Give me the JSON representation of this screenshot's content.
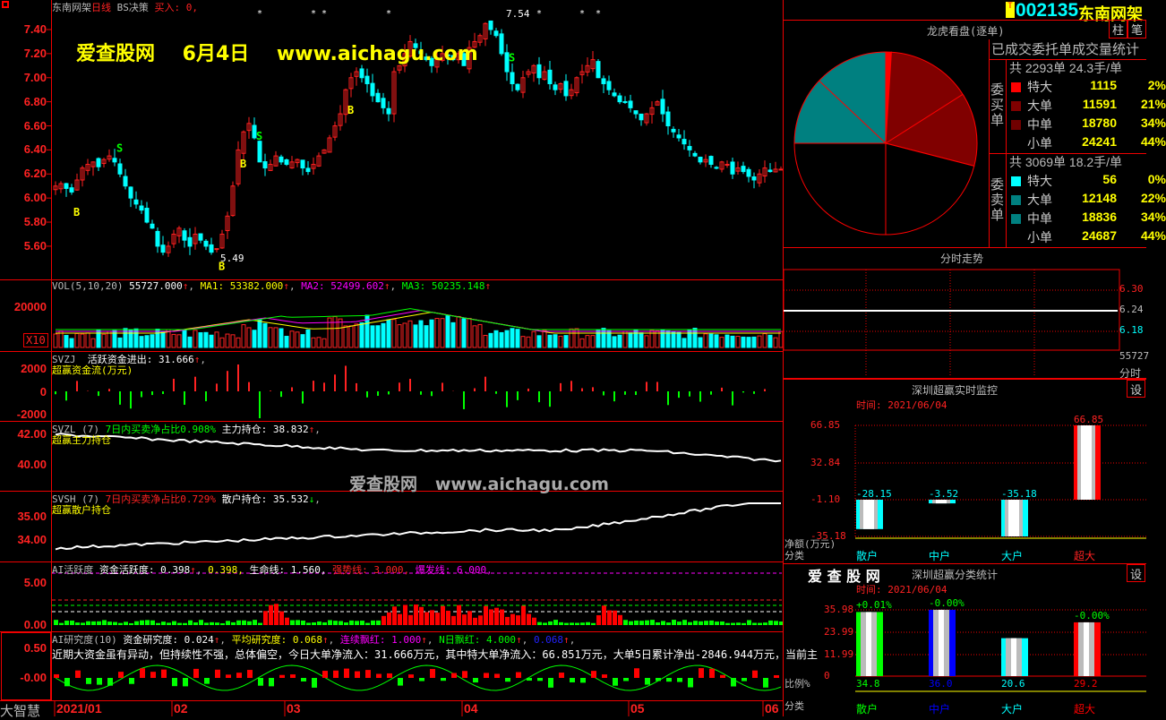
{
  "main_chart": {
    "stock_name": "东南网架",
    "period": "日线",
    "strategy": "BS决策",
    "buy_label": "买入: 0,",
    "high_label": "7.54",
    "low_label": "5.49",
    "watermark_title": "爱查股网",
    "watermark_date": "6月4日",
    "watermark_url": "www.aichagu.com",
    "y_ticks": [
      "7.40",
      "7.20",
      "7.00",
      "6.80",
      "6.60",
      "6.40",
      "6.20",
      "6.00",
      "5.80",
      "5.60"
    ],
    "closes": [
      6.1,
      6.12,
      6.08,
      6.05,
      6.15,
      6.25,
      6.28,
      6.3,
      6.26,
      6.32,
      6.35,
      6.3,
      6.2,
      6.1,
      6.0,
      5.95,
      5.9,
      5.8,
      5.75,
      5.6,
      5.55,
      5.6,
      5.7,
      5.75,
      5.65,
      5.6,
      5.7,
      5.65,
      5.6,
      5.55,
      5.58,
      5.7,
      5.85,
      6.1,
      6.4,
      6.55,
      6.62,
      6.5,
      6.3,
      6.25,
      6.28,
      6.35,
      6.3,
      6.28,
      6.3,
      6.32,
      6.25,
      6.22,
      6.28,
      6.35,
      6.4,
      6.5,
      6.6,
      6.7,
      6.9,
      7.0,
      7.05,
      7.0,
      6.95,
      6.85,
      6.8,
      6.75,
      6.7,
      7.05,
      7.1,
      7.2,
      7.3,
      7.25,
      7.2,
      7.15,
      7.1,
      7.15,
      7.2,
      7.18,
      7.15,
      7.2,
      7.1,
      7.25,
      7.3,
      7.35,
      7.45,
      7.4,
      7.35,
      7.2,
      7.05,
      6.95,
      6.9,
      7.0,
      7.05,
      7.1,
      7.0,
      7.05,
      6.95,
      6.9,
      6.95,
      6.85,
      6.9,
      7.0,
      7.05,
      7.1,
      7.15,
      7.0,
      6.95,
      6.9,
      6.85,
      6.8,
      6.8,
      6.75,
      6.7,
      6.65,
      6.7,
      6.75,
      6.8,
      6.7,
      6.6,
      6.55,
      6.5,
      6.45,
      6.4,
      6.35,
      6.3,
      6.32,
      6.28,
      6.25,
      6.3,
      6.28,
      6.2,
      6.25,
      6.22,
      6.18,
      6.15,
      6.2,
      6.25,
      6.22,
      6.24,
      6.24
    ],
    "signal_b": "B",
    "signal_s": "S"
  },
  "vol": {
    "name": "VOL(5,10,20)",
    "value": "55727.000",
    "ma1": "MA1: 53382.000",
    "ma2": "MA2: 52499.602",
    "ma3": "MA3: 50235.148",
    "y_tick": "20000",
    "unit": "X10"
  },
  "svzj": {
    "name": "SVZJ",
    "label": "活跃资金进出: 31.666",
    "sub": "超赢资金流(万元)",
    "y_ticks": [
      "2000",
      "0",
      "-2000"
    ]
  },
  "svzl": {
    "name": "SVZL (7)",
    "ratio": "7日内买卖净占比0.908%",
    "label": "主力持仓: 38.832",
    "sub": "超赢主力持仓",
    "y_ticks": [
      "42.00",
      "40.00"
    ]
  },
  "svsh": {
    "name": "SVSH (7)",
    "ratio": "7日内买卖净占比0.729%",
    "label": "散户持仓: 35.532",
    "sub": "超赢散户持仓",
    "y_ticks": [
      "35.00",
      "34.00"
    ]
  },
  "ai_active": {
    "name": "AI活跃度",
    "v1": "资金活跃度: 0.398",
    "v2": "0.398,",
    "v3": "生命线: 1.560,",
    "v4": "强势线: 3.000,",
    "v5": "爆发线: 6.000,",
    "y_ticks": [
      "5.00",
      "0.00"
    ]
  },
  "ai_research": {
    "name": "AI研究度(10)",
    "v1": "资金研究度: 0.024",
    "v2": "平均研究度: 0.068",
    "v3": "连续飘红: 1.000",
    "v4": "N日飘红: 4.000",
    "v5": "0.068",
    "comment": "近期大资金虽有异动，但持续性不强，总体偏空，今日大单净流入：31.666万元，其中特大单净流入：66.851万元，大单5日累计净出-2846.944万元，当前主",
    "y_ticks": [
      "0.50",
      "-0.00"
    ]
  },
  "date_axis": {
    "corner": "大智慧",
    "labels": [
      "2021/01",
      "02",
      "03",
      "04",
      "05",
      "06"
    ]
  },
  "header": {
    "badge": "T",
    "code": "002135",
    "name": "东南网架"
  },
  "lhkp": {
    "title": "龙虎看盘(逐单)",
    "btn_bar": "柱",
    "btn_pen": "笔",
    "stats_title": "已成交委托单成交量统计",
    "buy_side": "委买单",
    "sell_side": "委卖单",
    "buy": {
      "total": "共 2293单 24.3手/单",
      "rows": [
        {
          "label": "特大",
          "value": "1115",
          "pct": "2%",
          "color": "#ff0000"
        },
        {
          "label": "大单",
          "value": "11591",
          "pct": "21%",
          "color": "#800000"
        },
        {
          "label": "中单",
          "value": "18780",
          "pct": "34%",
          "color": "#700000"
        },
        {
          "label": "小单",
          "value": "24241",
          "pct": "44%",
          "color": ""
        }
      ]
    },
    "sell": {
      "total": "共 3069单 18.2手/单",
      "rows": [
        {
          "label": "特大",
          "value": "56",
          "pct": "0%",
          "color": "#00ffff"
        },
        {
          "label": "大单",
          "value": "12148",
          "pct": "22%",
          "color": "#008080"
        },
        {
          "label": "中单",
          "value": "18836",
          "pct": "34%",
          "color": "#008080"
        },
        {
          "label": "小单",
          "value": "24687",
          "pct": "44%",
          "color": ""
        }
      ]
    }
  },
  "intraday": {
    "title": "分时走势",
    "prices": [
      "6.30",
      "6.24",
      "6.18"
    ],
    "vol": "55727",
    "vol_label": "分时"
  },
  "monitor": {
    "title": "深圳超赢实时监控",
    "set": "设",
    "time": "时间: 2021/06/04",
    "y_ticks": [
      "66.85",
      "32.84",
      "-1.10",
      "-35.18"
    ],
    "ylabel": "净额(万元)",
    "xlabel": "分类",
    "bars": [
      {
        "cat": "散户",
        "value": -28.15,
        "label": "-28.15",
        "color": "#00ffff"
      },
      {
        "cat": "中户",
        "value": -3.52,
        "label": "-3.52",
        "color": "#00ffff"
      },
      {
        "cat": "大户",
        "value": -35.18,
        "label": "-35.18",
        "color": "#00ffff"
      },
      {
        "cat": "超大",
        "value": 66.85,
        "label": "66.85",
        "color": "#ff0000"
      }
    ]
  },
  "classify": {
    "logo": "爱 查 股 网",
    "title": "深圳超赢分类统计",
    "set": "设",
    "time": "时间: 2021/06/04",
    "y_ticks": [
      "35.98",
      "23.99",
      "11.99",
      "0"
    ],
    "ylabel": "比例%",
    "xlabel": "分类",
    "bars": [
      {
        "cat": "散户",
        "value": 34.8,
        "label": "34.8",
        "change": "+0.01%",
        "color": "#00ff00"
      },
      {
        "cat": "中户",
        "value": 36.0,
        "label": "36.0",
        "change": "-0.00%",
        "color": "#0000ff"
      },
      {
        "cat": "大户",
        "value": 20.6,
        "label": "20.6",
        "change": "",
        "color": "#00ffff"
      },
      {
        "cat": "超大",
        "value": 29.2,
        "label": "29.2",
        "change": "-0.00%",
        "color": "#ff0000"
      }
    ]
  }
}
